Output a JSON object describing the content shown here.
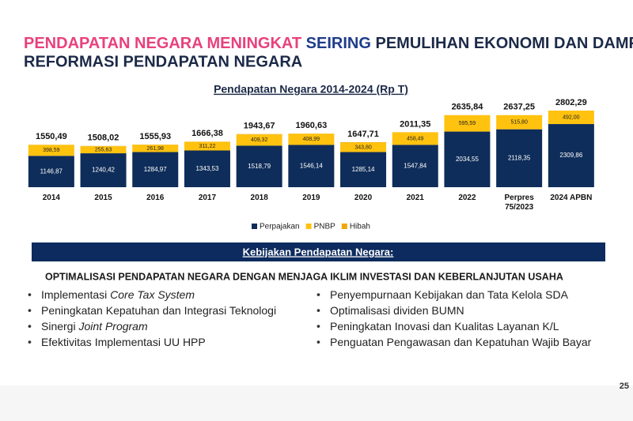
{
  "header": {
    "title_pink": "PENDAPATAN NEGARA MENINGKAT",
    "title_blue": "SEIRING",
    "title_rest": "PEMULIHAN EKONOMI DAN DAMPAK",
    "title_line2": "REFORMASI PENDAPATAN NEGARA"
  },
  "chart_data": {
    "type": "stacked_bar",
    "title": "Pendapatan Negara 2014-2024 (Rp T)",
    "categories": [
      "2014",
      "2015",
      "2016",
      "2017",
      "2018",
      "2019",
      "2020",
      "2021",
      "2022",
      "Perpres 75/2023",
      "2024 APBN"
    ],
    "series": [
      {
        "name": "Perpajakan",
        "color": "#0f2d5a",
        "values": [
          1146.87,
          1240.42,
          1284.97,
          1343.53,
          1518.79,
          1546.14,
          1285.14,
          1547.84,
          2034.55,
          2118.35,
          2309.86
        ],
        "value_labels": [
          "1146,87",
          "1240,42",
          "1284,97",
          "1343,53",
          "1518,79",
          "1546,14",
          "1285,14",
          "1547,84",
          "2034,55",
          "2118,35",
          "2309,86"
        ]
      },
      {
        "name": "PNBP",
        "color": "#ffc20e",
        "values": [
          398.59,
          255.63,
          261.98,
          311.22,
          409.32,
          408.99,
          343.8,
          458.49,
          595.59,
          515.8,
          492.0
        ],
        "value_labels": [
          "398,59",
          "255,63",
          "261,98",
          "311,22",
          "409,32",
          "408,99",
          "343,80",
          "458,49",
          "595,59",
          "515,80",
          "492,00"
        ]
      },
      {
        "name": "Hibah",
        "color": "#f0a800",
        "values": [
          5.03,
          11.97,
          8.98,
          11.63,
          15.56,
          5.5,
          18.77,
          5.02,
          5.7,
          3.1,
          0.43
        ]
      }
    ],
    "totals": [
      1550.49,
      1508.02,
      1555.93,
      1666.38,
      1943.67,
      1960.63,
      1647.71,
      2011.35,
      2635.84,
      2637.25,
      2802.29
    ],
    "total_labels": [
      "1550,49",
      "1508,02",
      "1555,93",
      "1666,38",
      "1943,67",
      "1960,63",
      "1647,71",
      "2011,35",
      "2635,84",
      "2637,25",
      "2802,29"
    ]
  },
  "policy": {
    "banner": "Kebijakan Pendapatan Negara:",
    "subtitle": "OPTIMALISASI PENDAPATAN NEGARA DENGAN MENJAGA IKLIM INVESTASI DAN KEBERLANJUTAN USAHA",
    "left": [
      {
        "text": "Implementasi",
        "italic": "Core Tax System"
      },
      {
        "text": "Peningkatan Kepatuhan dan Integrasi Teknologi"
      },
      {
        "text": "Sinergi",
        "italic": "Joint Program"
      },
      {
        "text": "Efektivitas Implementasi UU HPP"
      }
    ],
    "right": [
      {
        "text": "Penyempurnaan Kebijakan dan Tata Kelola SDA"
      },
      {
        "text": "Optimalisasi dividen BUMN"
      },
      {
        "text": "Peningkatan Inovasi dan Kualitas Layanan K/L"
      },
      {
        "text": "Penguatan Pengawasan dan Kepatuhan Wajib Bayar"
      }
    ]
  },
  "page_number": "25"
}
